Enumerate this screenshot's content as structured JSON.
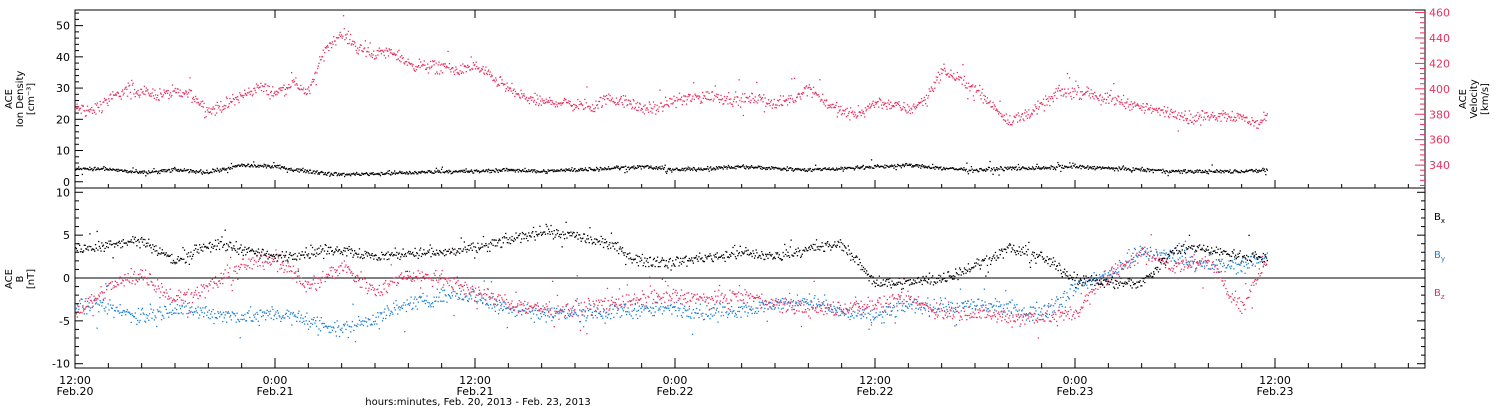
{
  "colors": {
    "black": "#000000",
    "pink": "#e8315f",
    "blue": "#1a7fd6"
  },
  "chart_data": [
    {
      "type": "scatter",
      "name": "ace-density-velocity",
      "ylabel_left": [
        "ACE",
        "Ion Density",
        "[cm⁻³]"
      ],
      "ylabel_right": [
        "ACE",
        "Velocity",
        "[km/s]"
      ],
      "yticks_left": [
        "0",
        "10",
        "20",
        "30",
        "40",
        "50"
      ],
      "yticks_right": [
        "340",
        "360",
        "380",
        "400",
        "420",
        "440",
        "460"
      ],
      "ylim_left": [
        -2,
        55
      ],
      "ylim_right": [
        322,
        462
      ],
      "x_range_hours": [
        0,
        81
      ],
      "data_span_hours": [
        0,
        71.5
      ],
      "series": [
        {
          "key": "density",
          "axis": "left",
          "color": "#000000",
          "note_hours_values": [
            [
              0,
              4.5
            ],
            [
              2,
              4.2
            ],
            [
              4,
              3.0
            ],
            [
              6,
              4.0
            ],
            [
              8,
              3.2
            ],
            [
              10,
              5.5
            ],
            [
              12,
              5.0
            ],
            [
              14,
              3.5
            ],
            [
              16,
              2.5
            ],
            [
              18,
              2.8
            ],
            [
              20,
              3.0
            ],
            [
              22,
              3.5
            ],
            [
              24,
              3.5
            ],
            [
              26,
              4.0
            ],
            [
              28,
              3.5
            ],
            [
              30,
              4.0
            ],
            [
              32,
              4.5
            ],
            [
              34,
              5.0
            ],
            [
              36,
              4.0
            ],
            [
              38,
              4.5
            ],
            [
              40,
              5.0
            ],
            [
              42,
              4.5
            ],
            [
              44,
              4.0
            ],
            [
              46,
              4.5
            ],
            [
              48,
              5.0
            ],
            [
              50,
              5.5
            ],
            [
              52,
              4.5
            ],
            [
              54,
              4.0
            ],
            [
              56,
              4.5
            ],
            [
              58,
              4.5
            ],
            [
              60,
              5.0
            ],
            [
              62,
              4.5
            ],
            [
              64,
              4.0
            ],
            [
              66,
              3.5
            ],
            [
              68,
              3.5
            ],
            [
              70,
              3.5
            ],
            [
              71.5,
              4.0
            ]
          ]
        },
        {
          "key": "velocity",
          "axis": "right",
          "color": "#e8315f",
          "note_hours_values": [
            [
              0,
              385
            ],
            [
              1,
              383
            ],
            [
              2,
              392
            ],
            [
              3,
              399
            ],
            [
              4,
              398
            ],
            [
              5,
              396
            ],
            [
              6,
              397
            ],
            [
              7,
              396
            ],
            [
              8,
              383
            ],
            [
              9,
              388
            ],
            [
              10,
              395
            ],
            [
              11,
              402
            ],
            [
              12,
              397
            ],
            [
              13,
              405
            ],
            [
              14,
              398
            ],
            [
              15,
              432
            ],
            [
              16,
              445
            ],
            [
              17,
              432
            ],
            [
              18,
              428
            ],
            [
              19,
              430
            ],
            [
              20,
              420
            ],
            [
              21,
              418
            ],
            [
              22,
              418
            ],
            [
              23,
              415
            ],
            [
              24,
              418
            ],
            [
              25,
              410
            ],
            [
              26,
              400
            ],
            [
              27,
              393
            ],
            [
              28,
              390
            ],
            [
              29,
              390
            ],
            [
              30,
              388
            ],
            [
              31,
              387
            ],
            [
              32,
              393
            ],
            [
              33,
              390
            ],
            [
              34,
              385
            ],
            [
              35,
              385
            ],
            [
              36,
              392
            ],
            [
              37,
              393
            ],
            [
              38,
              395
            ],
            [
              39,
              393
            ],
            [
              40,
              392
            ],
            [
              41,
              393
            ],
            [
              42,
              388
            ],
            [
              43,
              392
            ],
            [
              44,
              402
            ],
            [
              45,
              390
            ],
            [
              46,
              382
            ],
            [
              47,
              380
            ],
            [
              48,
              390
            ],
            [
              49,
              388
            ],
            [
              50,
              384
            ],
            [
              51,
              392
            ],
            [
              52,
              415
            ],
            [
              53,
              408
            ],
            [
              54,
              400
            ],
            [
              55,
              388
            ],
            [
              56,
              375
            ],
            [
              57,
              380
            ],
            [
              58,
              387
            ],
            [
              59,
              398
            ],
            [
              60,
              398
            ],
            [
              61,
              396
            ],
            [
              62,
              392
            ],
            [
              63,
              390
            ],
            [
              64,
              386
            ],
            [
              65,
              383
            ],
            [
              66,
              382
            ],
            [
              67,
              376
            ],
            [
              68,
              380
            ],
            [
              69,
              380
            ],
            [
              70,
              378
            ],
            [
              71,
              372
            ],
            [
              71.5,
              380
            ]
          ]
        }
      ]
    },
    {
      "type": "scatter",
      "name": "ace-magnetic-field",
      "ylabel": [
        "ACE",
        "B",
        "[nT]"
      ],
      "yticks": [
        "-10",
        "-5",
        "0",
        "5",
        "10"
      ],
      "ylim": [
        -10.5,
        10.5
      ],
      "zero_line": true,
      "x_range_hours": [
        0,
        81
      ],
      "data_span_hours": [
        0,
        71.5
      ],
      "legend": [
        {
          "label": "B",
          "sub": "x",
          "color": "#000000"
        },
        {
          "label": "B",
          "sub": "y",
          "color": "#1a7fd6"
        },
        {
          "label": "B",
          "sub": "z",
          "color": "#e8315f"
        }
      ],
      "series": [
        {
          "key": "bx",
          "color": "#000000",
          "note_hours_values": [
            [
              0,
              3.5
            ],
            [
              2,
              4.0
            ],
            [
              4,
              4.5
            ],
            [
              6,
              2.0
            ],
            [
              8,
              4.0
            ],
            [
              10,
              3.5
            ],
            [
              12,
              2.5
            ],
            [
              14,
              3.0
            ],
            [
              16,
              3.5
            ],
            [
              18,
              2.5
            ],
            [
              20,
              3.0
            ],
            [
              22,
              3.0
            ],
            [
              24,
              3.5
            ],
            [
              26,
              4.5
            ],
            [
              28,
              5.5
            ],
            [
              30,
              5.0
            ],
            [
              32,
              4.0
            ],
            [
              34,
              2.0
            ],
            [
              36,
              2.0
            ],
            [
              38,
              2.5
            ],
            [
              40,
              3.0
            ],
            [
              42,
              2.5
            ],
            [
              44,
              3.5
            ],
            [
              46,
              4.0
            ],
            [
              48,
              -0.5
            ],
            [
              50,
              -0.5
            ],
            [
              52,
              0.0
            ],
            [
              54,
              1.5
            ],
            [
              56,
              3.5
            ],
            [
              58,
              2.5
            ],
            [
              60,
              0.0
            ],
            [
              62,
              -0.5
            ],
            [
              64,
              -0.5
            ],
            [
              66,
              3.5
            ],
            [
              68,
              3.5
            ],
            [
              70,
              2.5
            ],
            [
              71.5,
              2.5
            ]
          ]
        },
        {
          "key": "by",
          "color": "#1a7fd6",
          "note_hours_values": [
            [
              0,
              -3.0
            ],
            [
              2,
              -3.5
            ],
            [
              4,
              -4.5
            ],
            [
              6,
              -3.5
            ],
            [
              8,
              -4.0
            ],
            [
              10,
              -4.5
            ],
            [
              12,
              -4.0
            ],
            [
              14,
              -5.0
            ],
            [
              16,
              -6.0
            ],
            [
              18,
              -4.5
            ],
            [
              20,
              -3.0
            ],
            [
              22,
              -2.0
            ],
            [
              24,
              -2.0
            ],
            [
              26,
              -3.5
            ],
            [
              28,
              -4.0
            ],
            [
              30,
              -4.0
            ],
            [
              32,
              -4.0
            ],
            [
              34,
              -3.5
            ],
            [
              36,
              -3.5
            ],
            [
              38,
              -4.0
            ],
            [
              40,
              -3.5
            ],
            [
              42,
              -3.0
            ],
            [
              44,
              -2.5
            ],
            [
              46,
              -4.0
            ],
            [
              48,
              -4.5
            ],
            [
              50,
              -3.0
            ],
            [
              52,
              -3.5
            ],
            [
              54,
              -3.0
            ],
            [
              56,
              -3.5
            ],
            [
              58,
              -4.0
            ],
            [
              60,
              -1.0
            ],
            [
              62,
              0.5
            ],
            [
              64,
              3.0
            ],
            [
              66,
              2.5
            ],
            [
              68,
              1.5
            ],
            [
              70,
              1.5
            ],
            [
              71.5,
              2.5
            ]
          ]
        },
        {
          "key": "bz",
          "color": "#e8315f",
          "note_hours_values": [
            [
              0,
              -4.0
            ],
            [
              2,
              -1.0
            ],
            [
              4,
              0.5
            ],
            [
              6,
              -2.5
            ],
            [
              8,
              -1.0
            ],
            [
              10,
              1.5
            ],
            [
              12,
              2.5
            ],
            [
              14,
              -1.0
            ],
            [
              16,
              1.5
            ],
            [
              18,
              -1.5
            ],
            [
              20,
              0.5
            ],
            [
              22,
              0.0
            ],
            [
              24,
              -1.5
            ],
            [
              26,
              -3.0
            ],
            [
              28,
              -3.5
            ],
            [
              30,
              -3.5
            ],
            [
              32,
              -3.0
            ],
            [
              34,
              -2.5
            ],
            [
              36,
              -2.0
            ],
            [
              38,
              -2.5
            ],
            [
              40,
              -2.0
            ],
            [
              42,
              -3.0
            ],
            [
              44,
              -3.5
            ],
            [
              46,
              -3.5
            ],
            [
              48,
              -3.0
            ],
            [
              50,
              -2.5
            ],
            [
              52,
              -4.0
            ],
            [
              54,
              -4.0
            ],
            [
              56,
              -4.5
            ],
            [
              58,
              -4.5
            ],
            [
              60,
              -4.0
            ],
            [
              62,
              0.5
            ],
            [
              64,
              3.0
            ],
            [
              66,
              1.5
            ],
            [
              68,
              2.0
            ],
            [
              70,
              -3.5
            ],
            [
              71.5,
              2.5
            ]
          ]
        }
      ]
    }
  ],
  "x_axis": {
    "ticks": [
      {
        "hours": 0,
        "time": "12:00",
        "date": "Feb.20"
      },
      {
        "hours": 12,
        "time": "0:00",
        "date": "Feb.21"
      },
      {
        "hours": 24,
        "time": "12:00",
        "date": "Feb.21"
      },
      {
        "hours": 36,
        "time": "0:00",
        "date": "Feb.22"
      },
      {
        "hours": 48,
        "time": "12:00",
        "date": "Feb.22"
      },
      {
        "hours": 60,
        "time": "0:00",
        "date": "Feb.23"
      },
      {
        "hours": 72,
        "time": "12:00",
        "date": "Feb.23"
      }
    ],
    "xlabel": "hours:minutes, Feb. 20, 2013 - Feb. 23, 2013"
  }
}
